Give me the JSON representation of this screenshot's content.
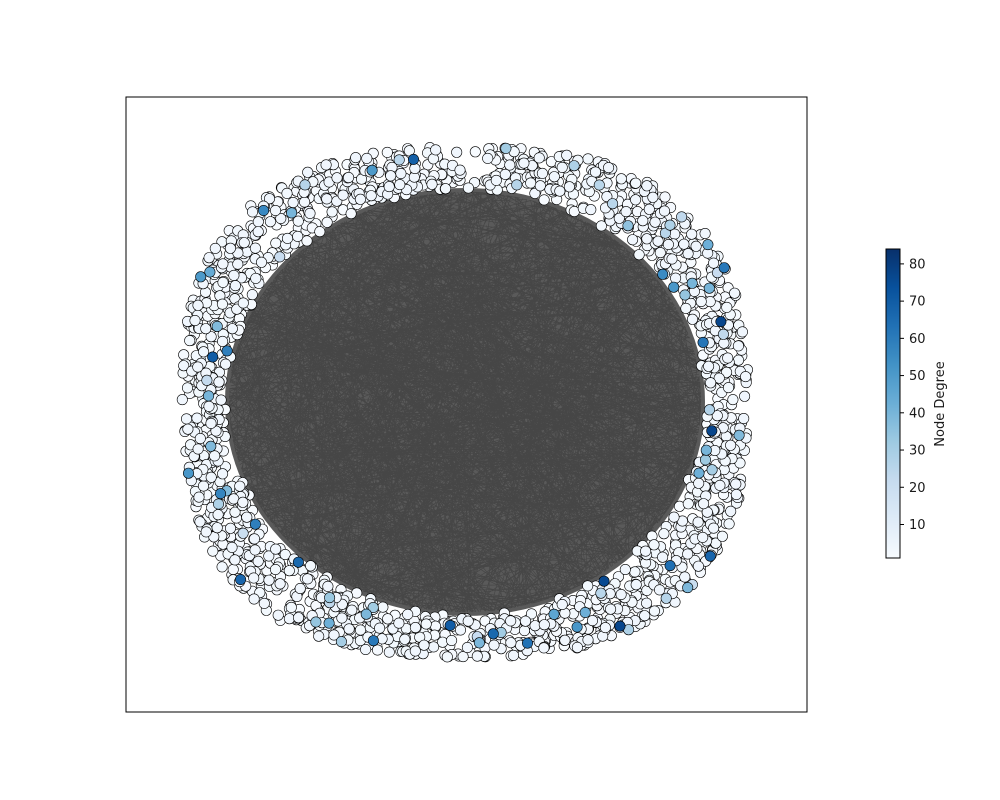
{
  "colorbar": {
    "label": "Node Degree",
    "min": 1,
    "max": 84,
    "ticks": [
      10,
      20,
      30,
      40,
      50,
      60,
      70,
      80
    ],
    "colormap": [
      "#f7fbff",
      "#deebf7",
      "#c6dbef",
      "#9ecae1",
      "#6baed6",
      "#4292c6",
      "#2171b5",
      "#08519c",
      "#08306b"
    ]
  },
  "graph": {
    "edge_color": "#000000",
    "node_edge_color": "#000000"
  }
}
